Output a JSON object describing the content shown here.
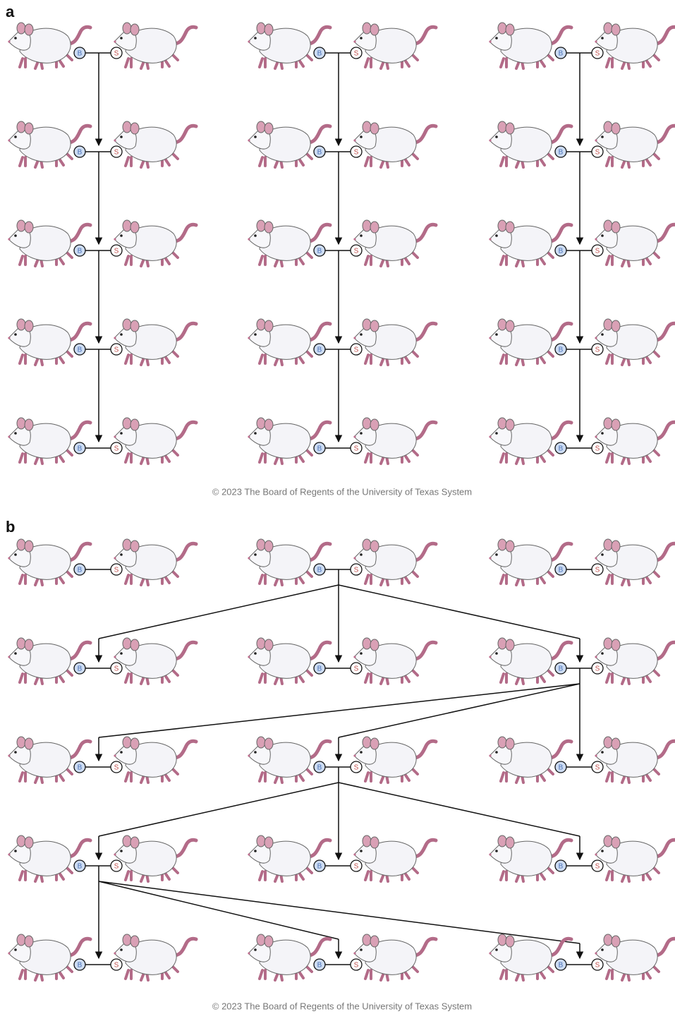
{
  "panels": [
    {
      "label": "a",
      "copyright": "© 2023 The Board of Regents of the University of Texas System"
    },
    {
      "label": "b",
      "copyright": "© 2023 The Board of Regents of the University of Texas System"
    }
  ],
  "pair_labels": {
    "left": "B",
    "right": "S"
  }
}
